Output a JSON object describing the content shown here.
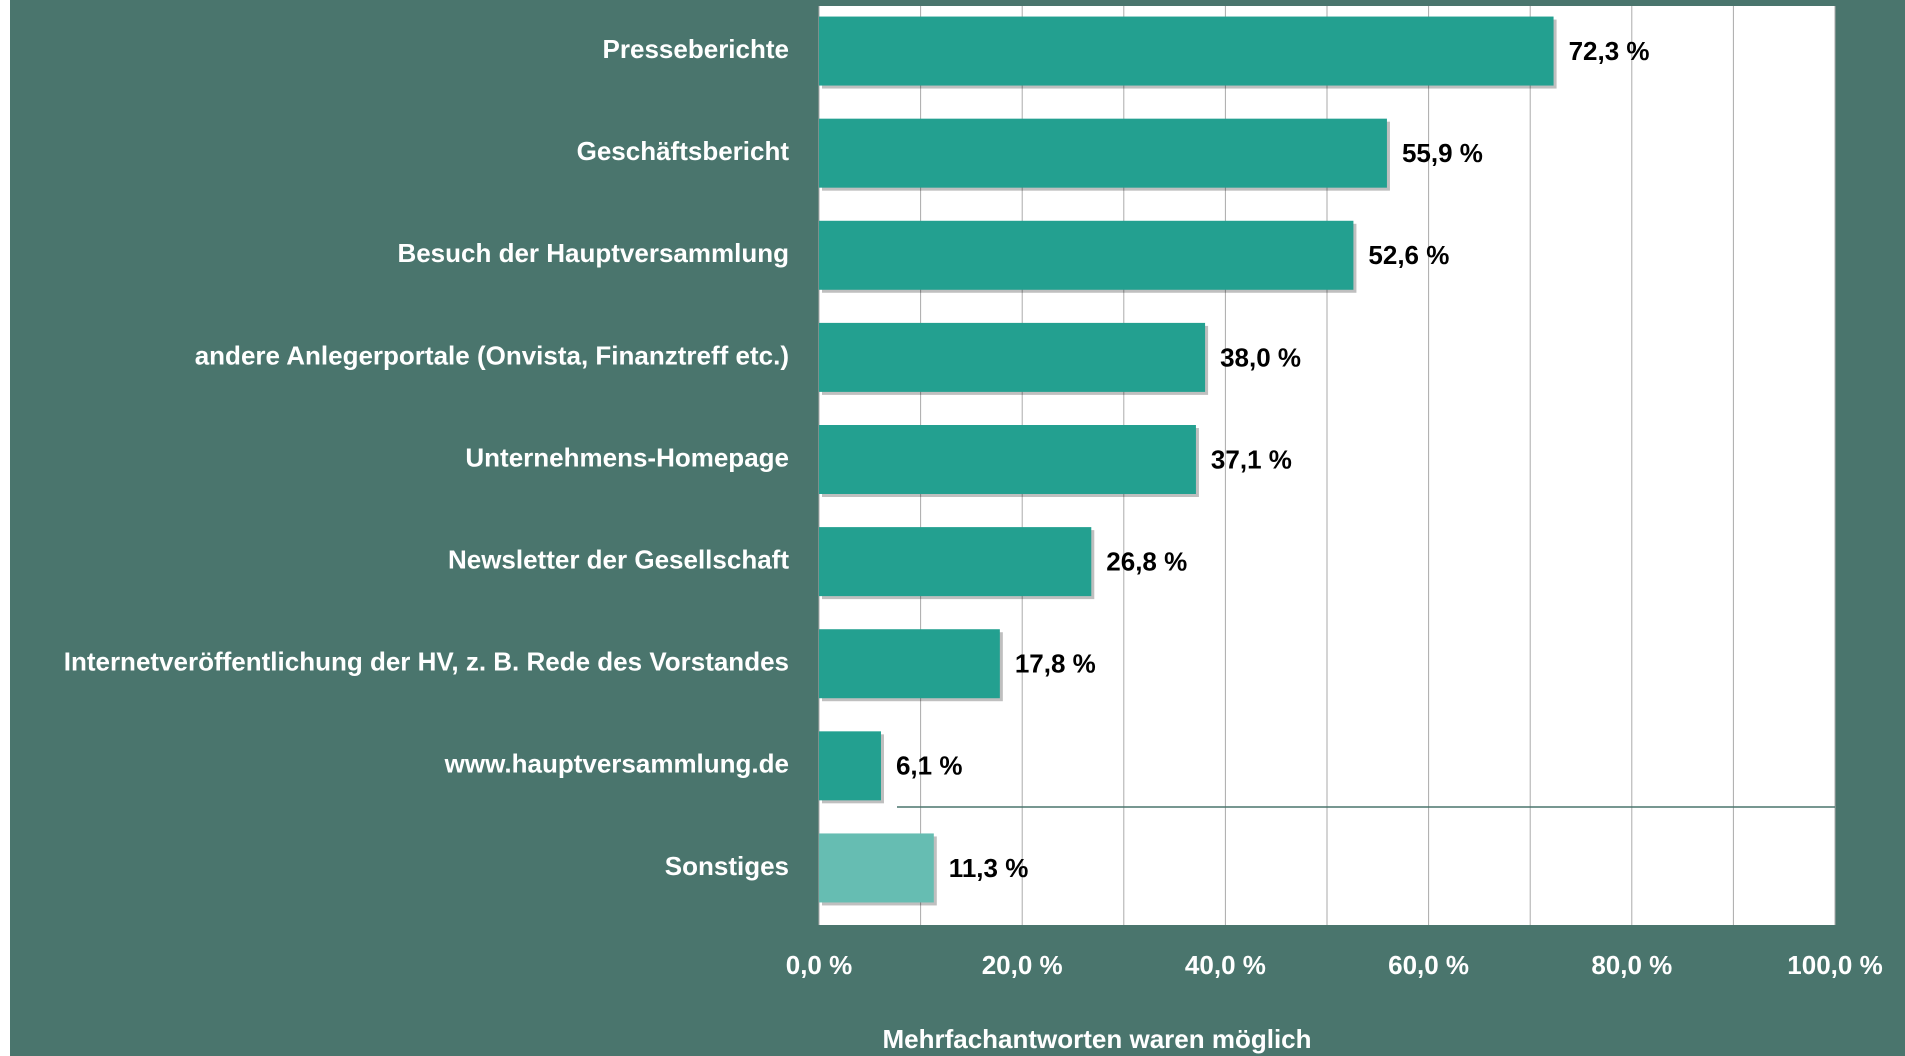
{
  "chart_data": {
    "type": "barh",
    "categories": [
      "Presseberichte",
      "Geschäftsbericht",
      "Besuch der Hauptversammlung",
      "andere Anlegerportale (Onvista, Finanztreff etc.)",
      "Unternehmens-Homepage",
      "Newsletter der Gesellschaft",
      "Internetveröffentlichung der HV, z. B. Rede des Vorstandes",
      "www.hauptversammlung.de",
      "Sonstiges"
    ],
    "values": [
      72.3,
      55.9,
      52.6,
      38.0,
      37.1,
      26.8,
      17.8,
      6.1,
      11.3
    ],
    "value_labels": [
      "72,3 %",
      "55,9 %",
      "52,6 %",
      "38,0 %",
      "37,1 %",
      "26,8 %",
      "17,8 %",
      "6,1 %",
      "11,3 %"
    ],
    "colors": [
      "#23a090",
      "#23a090",
      "#23a090",
      "#23a090",
      "#23a090",
      "#23a090",
      "#23a090",
      "#23a090",
      "#66bdb2"
    ],
    "xlim": [
      0,
      100
    ],
    "xticks": [
      {
        "value": 0,
        "label": "0,0 %"
      },
      {
        "value": 20,
        "label": "20,0 %"
      },
      {
        "value": 40,
        "label": "40,0 %"
      },
      {
        "value": 60,
        "label": "60,0 %"
      },
      {
        "value": 80,
        "label": "80,0 %"
      },
      {
        "value": 100,
        "label": "100,0 %"
      }
    ],
    "minor_xticks": [
      10,
      30,
      50,
      70,
      90
    ],
    "grid": true,
    "xlabel": "Mehrfachantworten waren möglich"
  }
}
